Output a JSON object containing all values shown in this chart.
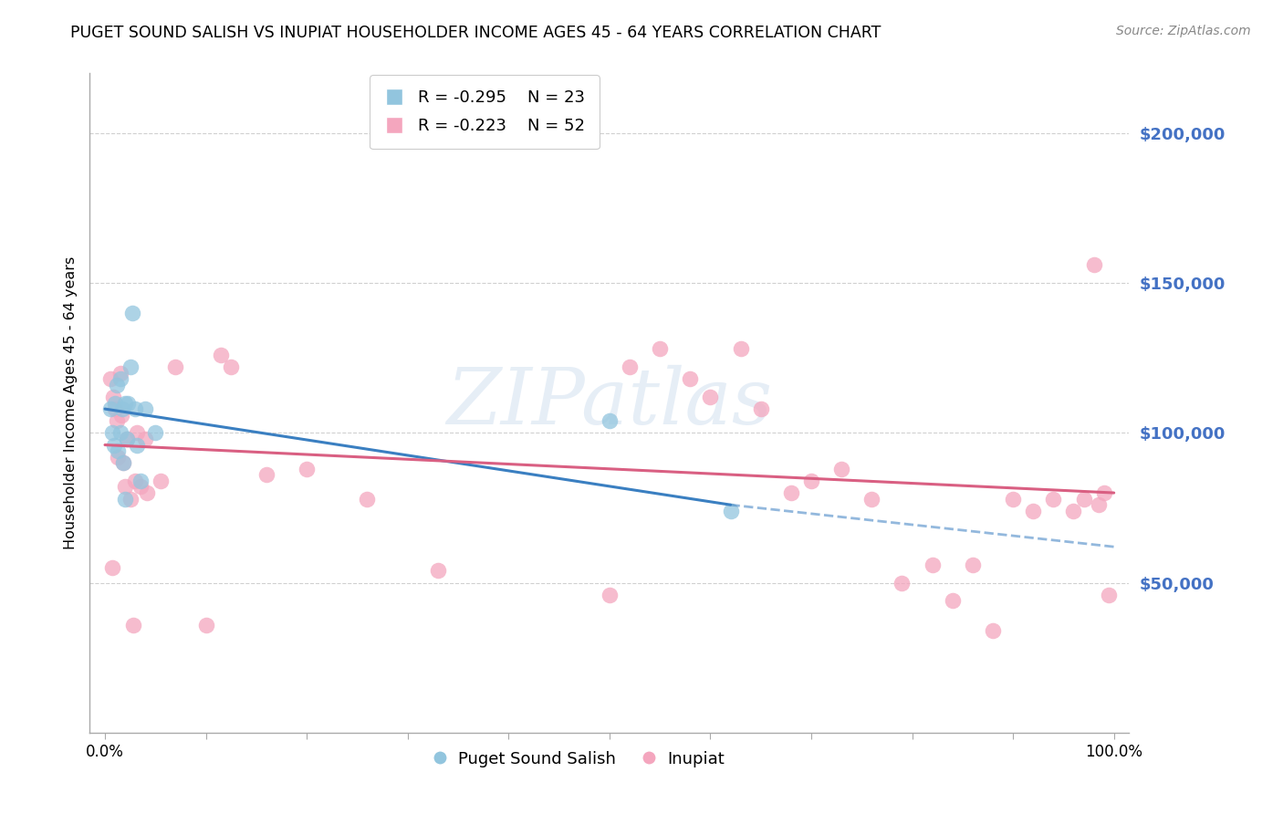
{
  "title": "PUGET SOUND SALISH VS INUPIAT HOUSEHOLDER INCOME AGES 45 - 64 YEARS CORRELATION CHART",
  "source": "Source: ZipAtlas.com",
  "ylabel": "Householder Income Ages 45 - 64 years",
  "xlim": [
    0.0,
    1.0
  ],
  "ylim": [
    0,
    220000
  ],
  "yticks": [
    50000,
    100000,
    150000,
    200000
  ],
  "blue_color": "#92c5de",
  "pink_color": "#f4a6be",
  "blue_line_color": "#3a7fc1",
  "pink_line_color": "#d95f82",
  "legend_label1": "Puget Sound Salish",
  "legend_label2": "Inupiat",
  "watermark": "ZIPatlas",
  "blue_scatter_x": [
    0.005,
    0.007,
    0.009,
    0.01,
    0.012,
    0.013,
    0.015,
    0.015,
    0.017,
    0.018,
    0.02,
    0.02,
    0.022,
    0.023,
    0.025,
    0.027,
    0.03,
    0.032,
    0.035,
    0.04,
    0.05,
    0.5,
    0.62
  ],
  "blue_scatter_y": [
    108000,
    100000,
    96000,
    110000,
    116000,
    94000,
    100000,
    118000,
    108000,
    90000,
    78000,
    110000,
    98000,
    110000,
    122000,
    140000,
    108000,
    96000,
    84000,
    108000,
    100000,
    104000,
    74000
  ],
  "pink_scatter_x": [
    0.005,
    0.007,
    0.008,
    0.01,
    0.012,
    0.013,
    0.015,
    0.016,
    0.018,
    0.02,
    0.022,
    0.025,
    0.028,
    0.03,
    0.032,
    0.035,
    0.04,
    0.042,
    0.055,
    0.07,
    0.1,
    0.115,
    0.125,
    0.16,
    0.2,
    0.26,
    0.33,
    0.5,
    0.52,
    0.55,
    0.58,
    0.6,
    0.63,
    0.65,
    0.68,
    0.7,
    0.73,
    0.76,
    0.79,
    0.82,
    0.84,
    0.86,
    0.88,
    0.9,
    0.92,
    0.94,
    0.96,
    0.97,
    0.98,
    0.985,
    0.99,
    0.995
  ],
  "pink_scatter_y": [
    118000,
    55000,
    112000,
    108000,
    104000,
    92000,
    120000,
    106000,
    90000,
    82000,
    98000,
    78000,
    36000,
    84000,
    100000,
    82000,
    98000,
    80000,
    84000,
    122000,
    36000,
    126000,
    122000,
    86000,
    88000,
    78000,
    54000,
    46000,
    122000,
    128000,
    118000,
    112000,
    128000,
    108000,
    80000,
    84000,
    88000,
    78000,
    50000,
    56000,
    44000,
    56000,
    34000,
    78000,
    74000,
    78000,
    74000,
    78000,
    156000,
    76000,
    80000,
    46000
  ],
  "background_color": "#ffffff",
  "grid_color": "#d0d0d0"
}
